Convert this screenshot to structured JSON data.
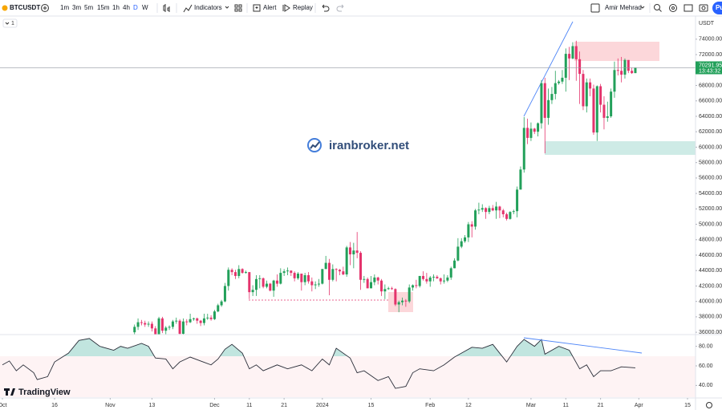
{
  "toolbar": {
    "symbol": "BTCUSDT",
    "intervals": [
      "1m",
      "3m",
      "5m",
      "15m",
      "1h",
      "4h",
      "D",
      "W"
    ],
    "indicators": "Indicators",
    "alert": "Alert",
    "replay": "Replay",
    "user": "Amir Mehrad",
    "publish": "Pu"
  },
  "pane_badge": "1",
  "watermark": "iranbroker.net",
  "logo": "TradingView",
  "chart_data": [
    {
      "type": "candlestick",
      "currency": "USDT",
      "up_color": "#22a05a",
      "down_color": "#e4336c",
      "x": [
        38,
        39,
        40,
        41,
        42,
        43,
        44,
        45,
        46,
        47,
        48,
        49,
        50,
        51,
        52,
        53,
        54,
        55,
        56,
        57,
        58,
        59,
        60,
        61,
        62,
        63,
        64,
        65,
        66,
        67,
        68,
        69,
        70,
        71,
        72,
        73,
        74,
        75,
        76,
        77,
        78,
        79,
        80,
        81,
        82,
        83,
        84,
        85,
        86,
        87,
        88,
        89,
        90,
        91,
        92,
        93,
        94,
        95,
        96,
        97,
        98,
        99,
        100,
        101,
        102,
        103,
        104,
        105,
        106,
        107,
        108,
        109,
        110,
        111,
        112,
        113,
        114,
        115,
        116,
        117,
        118,
        119,
        120,
        121,
        122,
        123,
        124,
        125,
        126,
        127,
        128,
        129,
        130,
        131,
        132,
        133,
        134,
        135,
        136,
        137,
        138,
        139,
        140,
        141,
        142,
        143,
        144,
        145,
        146,
        147,
        148,
        149,
        150,
        151,
        152,
        153,
        154,
        155,
        156,
        157,
        158,
        159,
        160,
        161,
        162,
        163,
        164,
        165,
        166,
        167,
        168,
        169,
        170,
        171,
        172,
        173,
        174,
        175,
        176,
        177,
        178,
        179,
        180,
        181,
        182
      ],
      "open": [
        36000,
        36700,
        37300,
        37200,
        37000,
        37100,
        36500,
        35500,
        37800,
        36200,
        36600,
        36700,
        37400,
        37500,
        35800,
        37400,
        37300,
        37700,
        37800,
        37500,
        37200,
        37800,
        37900,
        37700,
        38700,
        39500,
        40000,
        42000,
        44100,
        43800,
        43300,
        44200,
        43700,
        43800,
        41200,
        41500,
        42900,
        43000,
        41900,
        42300,
        41400,
        42700,
        42300,
        43700,
        43900,
        44000,
        43700,
        43000,
        43600,
        42500,
        43400,
        42600,
        42100,
        42200,
        42300,
        44200,
        45000,
        42800,
        44200,
        44100,
        43900,
        43500,
        47000,
        46100,
        46600,
        46300,
        42800,
        42900,
        41700,
        42500,
        43100,
        42700,
        41300,
        41600,
        41700,
        41600,
        39600,
        39900,
        40100,
        40000,
        41800,
        42100,
        42000,
        43300,
        42900,
        42600,
        43100,
        43200,
        43000,
        42600,
        42700,
        43100,
        44300,
        45300,
        47100,
        47800,
        48300,
        50000,
        49700,
        51800,
        51900,
        52100,
        51600,
        52100,
        51800,
        52300,
        51800,
        51300,
        50700,
        51600,
        51700,
        54500,
        57100,
        62500,
        61200,
        62400,
        62000,
        63100,
        68300,
        63800,
        66100,
        66900,
        68300,
        68500,
        69000,
        72100,
        71500,
        73100,
        71400,
        69500,
        65300,
        68400,
        67600,
        61900,
        67900,
        65500,
        63800,
        64000,
        67200,
        70000,
        69900,
        69400,
        71300,
        69900,
        69600
      ],
      "high": [
        37000,
        37800,
        37600,
        37500,
        37400,
        37400,
        36800,
        38000,
        38000,
        36800,
        36900,
        37600,
        37900,
        37700,
        37800,
        37700,
        38400,
        37900,
        37900,
        37600,
        38400,
        38400,
        38200,
        38900,
        39700,
        40200,
        42400,
        44400,
        44300,
        44100,
        44700,
        44300,
        44000,
        43800,
        42100,
        43400,
        43400,
        43100,
        42700,
        42400,
        42800,
        43500,
        44300,
        44200,
        44400,
        44000,
        43900,
        43800,
        43600,
        43700,
        43800,
        43100,
        42600,
        42900,
        44200,
        45900,
        45500,
        44800,
        44300,
        44200,
        44500,
        47200,
        47700,
        47600,
        49000,
        46500,
        43300,
        43100,
        43300,
        43500,
        43200,
        42900,
        42200,
        41900,
        41900,
        41700,
        40100,
        40500,
        40300,
        42200,
        42200,
        42800,
        43300,
        43900,
        43700,
        43300,
        43500,
        43400,
        43100,
        43500,
        43400,
        44500,
        45600,
        48200,
        48200,
        48600,
        50300,
        50400,
        52000,
        52800,
        52600,
        52200,
        52400,
        52500,
        52900,
        52400,
        52000,
        51500,
        51700,
        51900,
        54900,
        57500,
        63900,
        63700,
        63200,
        62500,
        63200,
        68700,
        69000,
        67600,
        67800,
        69900,
        68700,
        70000,
        72800,
        73000,
        73600,
        73800,
        72400,
        70000,
        68900,
        68900,
        68100,
        68000,
        68200,
        66600,
        65900,
        67600,
        71100,
        71500,
        71700,
        71500,
        71300,
        70300,
        70300
      ],
      "low": [
        35600,
        36300,
        36900,
        36700,
        36700,
        36100,
        35100,
        35300,
        35900,
        35700,
        36300,
        36400,
        37100,
        35600,
        35600,
        36900,
        37200,
        37500,
        37100,
        36800,
        36900,
        37600,
        37500,
        37600,
        38600,
        39300,
        39900,
        41400,
        43400,
        42900,
        43000,
        43600,
        43600,
        40300,
        40700,
        40700,
        41700,
        41700,
        41700,
        41300,
        40600,
        41900,
        42200,
        43300,
        43400,
        43300,
        42600,
        42800,
        41400,
        42100,
        42300,
        41300,
        41600,
        41900,
        42200,
        44200,
        40800,
        42600,
        42600,
        43400,
        43400,
        43200,
        44700,
        44300,
        45600,
        41500,
        42400,
        41700,
        41700,
        42100,
        42200,
        40700,
        40300,
        41500,
        41500,
        39400,
        38600,
        39500,
        39300,
        39800,
        41400,
        41700,
        41800,
        42700,
        42300,
        41900,
        42600,
        42900,
        42200,
        42300,
        42500,
        42800,
        44300,
        45200,
        46900,
        47600,
        47700,
        48300,
        49300,
        51300,
        51600,
        50700,
        51300,
        51700,
        50700,
        50800,
        50900,
        50500,
        50600,
        51300,
        50900,
        54500,
        56700,
        60400,
        60800,
        61700,
        61400,
        62400,
        59200,
        62900,
        65600,
        66200,
        68100,
        68200,
        67200,
        68700,
        71400,
        68600,
        65600,
        64800,
        64500,
        66600,
        61600,
        60800,
        64500,
        62300,
        63300,
        63800,
        66400,
        69300,
        68400,
        68900,
        69600,
        69500,
        69600
      ],
      "close": [
        36700,
        37300,
        37200,
        37000,
        37100,
        36500,
        35500,
        37800,
        36200,
        36600,
        36700,
        37400,
        37500,
        35800,
        37400,
        37300,
        37700,
        37800,
        37500,
        37200,
        37800,
        37900,
        37700,
        38700,
        39500,
        40000,
        42000,
        44100,
        43800,
        43300,
        44200,
        43700,
        43800,
        41200,
        41500,
        42900,
        43000,
        41900,
        42300,
        41400,
        42700,
        42300,
        43700,
        43900,
        44000,
        43700,
        43000,
        43600,
        42500,
        43400,
        42600,
        42100,
        42200,
        42300,
        44200,
        45000,
        42800,
        44200,
        44100,
        43900,
        43500,
        47000,
        46100,
        46600,
        46300,
        42800,
        42900,
        41700,
        42500,
        43100,
        42700,
        41300,
        41600,
        41700,
        41600,
        39600,
        39900,
        40100,
        40000,
        41800,
        42100,
        42000,
        43300,
        42900,
        42600,
        43100,
        43200,
        43000,
        42600,
        42700,
        43100,
        44300,
        45300,
        47100,
        47800,
        48300,
        50000,
        49700,
        51800,
        51900,
        52100,
        51600,
        52100,
        51800,
        52300,
        51800,
        51300,
        50700,
        51600,
        51700,
        54500,
        57100,
        62500,
        61200,
        62400,
        62000,
        63100,
        68300,
        63800,
        66100,
        66900,
        68300,
        68500,
        69000,
        72100,
        71500,
        73100,
        71400,
        69500,
        65300,
        68400,
        67600,
        61900,
        67900,
        65500,
        63800,
        64000,
        67200,
        70000,
        69900,
        69400,
        71300,
        69900,
        69600,
        70291.95
      ],
      "countdown": "13:43:32",
      "xlim": [
        0,
        197
      ],
      "xticks": [
        {
          "value": 0,
          "label": "Oct"
        },
        {
          "value": 15,
          "label": "16"
        },
        {
          "value": 31,
          "label": "Nov"
        },
        {
          "value": 43,
          "label": "13"
        },
        {
          "value": 61,
          "label": "Dec"
        },
        {
          "value": 71,
          "label": "11"
        },
        {
          "value": 81,
          "label": "21"
        },
        {
          "value": 92,
          "label": "2024"
        },
        {
          "value": 106,
          "label": "15"
        },
        {
          "value": 123,
          "label": "Feb"
        },
        {
          "value": 134,
          "label": "12"
        },
        {
          "value": 152,
          "label": "Mar"
        },
        {
          "value": 162,
          "label": "11"
        },
        {
          "value": 172,
          "label": "21"
        },
        {
          "value": 183,
          "label": "Apr"
        },
        {
          "value": 197,
          "label": "15"
        }
      ],
      "ylim": [
        35700,
        77000
      ],
      "yticks": [
        {
          "value": 36000,
          "label": "36000.00"
        },
        {
          "value": 38000,
          "label": "38000.00"
        },
        {
          "value": 40000,
          "label": "40000.00"
        },
        {
          "value": 42000,
          "label": "42000.00"
        },
        {
          "value": 44000,
          "label": "44000.00"
        },
        {
          "value": 46000,
          "label": "46000.00"
        },
        {
          "value": 48000,
          "label": "48000.00"
        },
        {
          "value": 50000,
          "label": "50000.00"
        },
        {
          "value": 52000,
          "label": "52000.00"
        },
        {
          "value": 54000,
          "label": "54000.00"
        },
        {
          "value": 56000,
          "label": "56000.00"
        },
        {
          "value": 58000,
          "label": "58000.00"
        },
        {
          "value": 60000,
          "label": "60000.00"
        },
        {
          "value": 62000,
          "label": "62000.00"
        },
        {
          "value": 64000,
          "label": "64000.00"
        },
        {
          "value": 66000,
          "label": "66000.00"
        },
        {
          "value": 68000,
          "label": "68000.00"
        },
        {
          "value": 70000,
          "label": "70000.00"
        },
        {
          "value": 72000,
          "label": "72000.00"
        },
        {
          "value": 74000,
          "label": "74000.00"
        }
      ]
    },
    {
      "type": "line",
      "color": "#2a2e39",
      "x": [
        0,
        2,
        4,
        6,
        9,
        10,
        13,
        15,
        19,
        22,
        25,
        28,
        32,
        34,
        36,
        40,
        42,
        44,
        47,
        49,
        51,
        54,
        57,
        60,
        62,
        64,
        66,
        69,
        71,
        73,
        75,
        79,
        82,
        86,
        89,
        92,
        94,
        96,
        100,
        102,
        104,
        108,
        111,
        113,
        116,
        118,
        120,
        124,
        127,
        130,
        132,
        135,
        138,
        141,
        143,
        145,
        148,
        150,
        153,
        155,
        156,
        160,
        163,
        166,
        168,
        170,
        172,
        175,
        178,
        182
      ],
      "values": [
        61,
        65,
        55,
        61,
        53,
        46,
        49,
        64,
        73,
        86,
        88,
        80,
        76,
        80,
        78,
        83,
        80,
        68,
        67,
        57,
        64,
        69,
        65,
        61,
        67,
        77,
        82,
        73,
        57,
        61,
        55,
        61,
        57,
        61,
        55,
        67,
        61,
        78,
        68,
        53,
        55,
        45,
        49,
        37,
        39,
        53,
        57,
        55,
        61,
        69,
        73,
        79,
        78,
        82,
        73,
        64,
        80,
        87,
        80,
        87,
        72,
        80,
        76,
        57,
        61,
        49,
        55,
        55,
        59,
        58
      ],
      "xlim": [
        0,
        197
      ],
      "ylim": [
        28,
        92
      ],
      "yticks": [
        {
          "value": 40,
          "label": "40.00"
        },
        {
          "value": 60,
          "label": "60.00"
        },
        {
          "value": 80,
          "label": "80.00"
        }
      ]
    }
  ]
}
